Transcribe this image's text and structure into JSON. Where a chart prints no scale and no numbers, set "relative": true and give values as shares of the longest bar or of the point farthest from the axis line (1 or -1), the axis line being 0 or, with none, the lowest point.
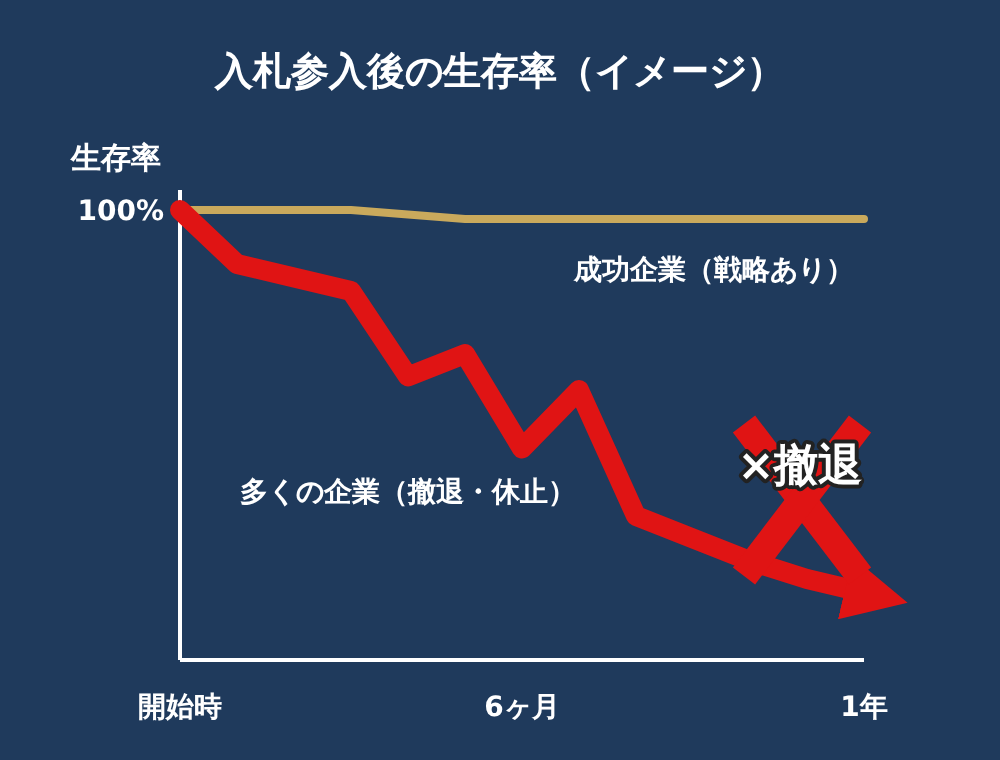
{
  "chart_data": {
    "type": "line",
    "title": "入札参入後の生存率（イメージ）",
    "ylabel": "生存率",
    "relative": true,
    "categories": [
      "開始時",
      null,
      null,
      null,
      null,
      null,
      "6ヶ月",
      null,
      null,
      null,
      null,
      null,
      "1年"
    ],
    "series": [
      {
        "name": "成功企業（戦略あり）",
        "color": "#c9a95c",
        "values": [
          1,
          1,
          1,
          1,
          0.99,
          0.98,
          0.98,
          0.98,
          0.98,
          0.98,
          0.98,
          0.98,
          0.98
        ]
      },
      {
        "name": "多くの企業（撤退・休止）",
        "color": "#e01414",
        "values": [
          1,
          0.88,
          0.85,
          0.82,
          0.63,
          0.68,
          0.47,
          0.6,
          0.32,
          0.27,
          0.22,
          0.18,
          0.15
        ]
      }
    ],
    "annotations": [
      "100%",
      "×撤退"
    ]
  }
}
